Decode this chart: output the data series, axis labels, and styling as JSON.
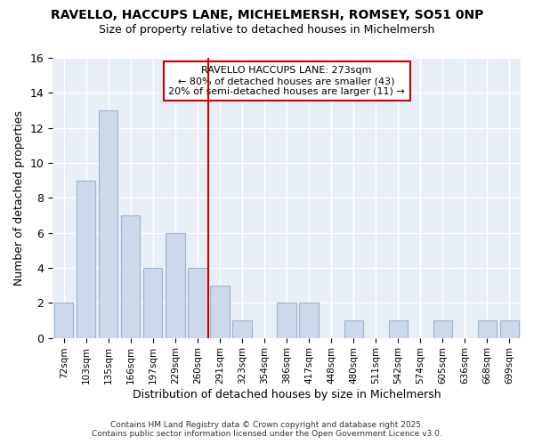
{
  "title1": "RAVELLO, HACCUPS LANE, MICHELMERSH, ROMSEY, SO51 0NP",
  "title2": "Size of property relative to detached houses in Michelmersh",
  "xlabel": "Distribution of detached houses by size in Michelmersh",
  "ylabel": "Number of detached properties",
  "categories": [
    "72sqm",
    "103sqm",
    "135sqm",
    "166sqm",
    "197sqm",
    "229sqm",
    "260sqm",
    "291sqm",
    "323sqm",
    "354sqm",
    "386sqm",
    "417sqm",
    "448sqm",
    "480sqm",
    "511sqm",
    "542sqm",
    "574sqm",
    "605sqm",
    "636sqm",
    "668sqm",
    "699sqm"
  ],
  "values": [
    2,
    9,
    13,
    7,
    4,
    6,
    4,
    3,
    1,
    0,
    2,
    2,
    0,
    1,
    0,
    1,
    0,
    1,
    0,
    1,
    1
  ],
  "bar_color": "#cdd9ea",
  "bar_edge_color": "#9ab4d0",
  "vline_color": "#cc0000",
  "annotation_text": "RAVELLO HACCUPS LANE: 273sqm\n← 80% of detached houses are smaller (43)\n20% of semi-detached houses are larger (11) →",
  "annotation_box_color": "#ffffff",
  "annotation_box_edge": "#cc0000",
  "ylim": [
    0,
    16
  ],
  "yticks": [
    0,
    2,
    4,
    6,
    8,
    10,
    12,
    14,
    16
  ],
  "footer1": "Contains HM Land Registry data © Crown copyright and database right 2025.",
  "footer2": "Contains public sector information licensed under the Open Government Licence v3.0.",
  "bg_color": "#ffffff",
  "plot_bg_color": "#e8eef5",
  "grid_color": "#ffffff",
  "title_fontsize": 10,
  "subtitle_fontsize": 9
}
